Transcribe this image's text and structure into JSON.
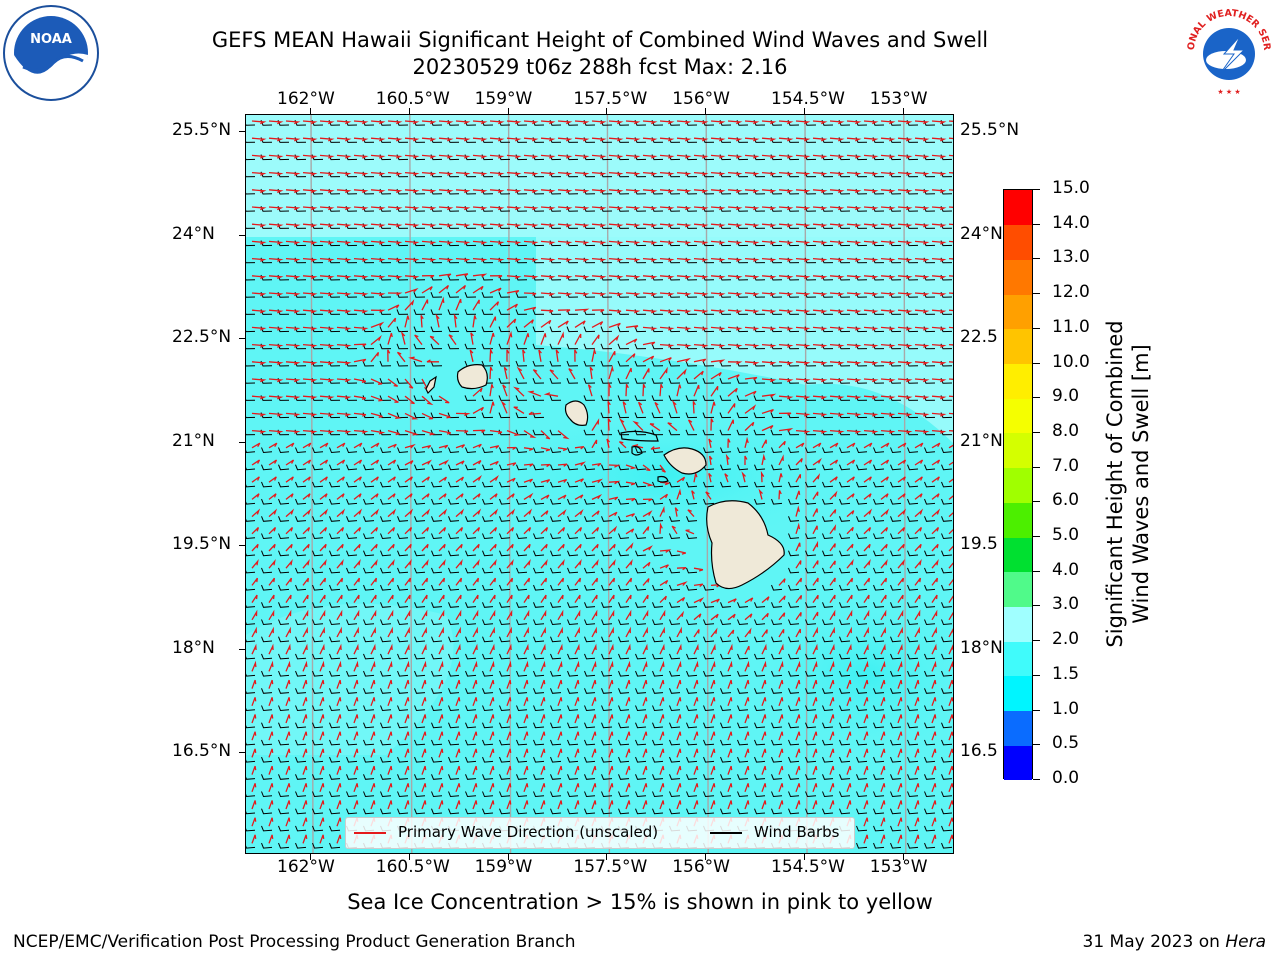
{
  "title_line1": "GEFS MEAN Hawaii Significant Height of Combined Wind Waves and Swell",
  "title_line2": "20230529 t06z 288h fcst   Max: 2.16",
  "logos": {
    "noaa_text": "NOAA",
    "nws_text": "NATIONAL WEATHER SERVICE"
  },
  "map": {
    "lon_labels": [
      "162°W",
      "160.5°W",
      "159°W",
      "157.5°W",
      "156°W",
      "154.5°W",
      "153°W"
    ],
    "lat_labels": [
      "25.5°N",
      "24°N",
      "22.5°N",
      "21°N",
      "19.5°N",
      "18°N",
      "16.5°N"
    ],
    "lat_labels_right": [
      "25.5°N",
      "24°N",
      "22.5",
      "21°N",
      "19.5",
      "18°N",
      "16.5"
    ],
    "lon_values": [
      -162,
      -160.5,
      -159,
      -157.5,
      -156,
      -154.5,
      -153
    ],
    "lat_values": [
      25.5,
      24,
      22.5,
      21,
      19.5,
      18,
      16.5
    ],
    "colors": {
      "ocean_main": "#5ff5f5",
      "ocean_light": "#96fbfb",
      "ocean_dark": "#3aeeef",
      "land": "#efe9d8",
      "wave_arrow": "#e41a1c",
      "wind_barb": "#000000",
      "grid": "#a8a8a8"
    }
  },
  "legend": {
    "wave_label": "Primary Wave Direction (unscaled)",
    "barb_label": "Wind Barbs"
  },
  "colorbar": {
    "title_line1": "Significant Height of Combined",
    "title_line2": "Wind Waves and Swell [m]",
    "ticks": [
      "15.0",
      "14.0",
      "13.0",
      "12.0",
      "11.0",
      "10.0",
      "9.0",
      "8.0",
      "7.0",
      "6.0",
      "5.0",
      "4.0",
      "3.0",
      "2.0",
      "1.5",
      "1.0",
      "0.5",
      "0.0"
    ],
    "bounds": [
      0.0,
      0.5,
      1.0,
      1.5,
      2.0,
      3.0,
      4.0,
      5.0,
      6.0,
      7.0,
      8.0,
      9.0,
      10.0,
      11.0,
      12.0,
      13.0,
      14.0,
      15.0
    ],
    "colors": [
      "#0000ff",
      "#0a6cff",
      "#00f5ff",
      "#40fbfb",
      "#a0ffff",
      "#50fa8a",
      "#00e030",
      "#4cef00",
      "#a0ff00",
      "#d4ff00",
      "#f5ff00",
      "#ffee00",
      "#ffc400",
      "#ffa000",
      "#ff7800",
      "#ff4d00",
      "#ff0000"
    ]
  },
  "note": "Sea Ice Concentration > 15% is shown in pink to yellow",
  "footer_left": "NCEP/EMC/Verification Post Processing Product Generation Branch",
  "footer_date": "31 May 2023 on",
  "footer_machine": "Hera"
}
